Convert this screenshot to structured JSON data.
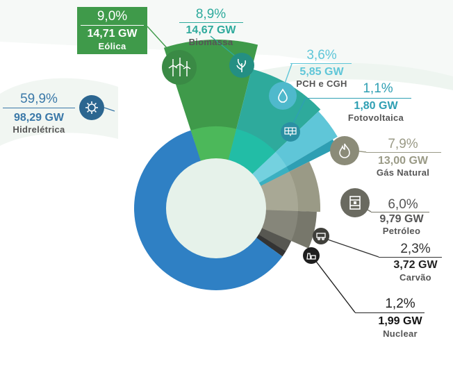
{
  "chart_data": {
    "type": "pie",
    "slices": [
      {
        "name": "Hidrelétrica",
        "percent": "59,9%",
        "capacity": "98,29 GW",
        "gw": 98.29,
        "color": "#3a78a8",
        "inner_color": "#2f80c4",
        "icon": "hydro-icon"
      },
      {
        "name": "Eólica",
        "percent": "9,0%",
        "capacity": "14,71 GW",
        "gw": 14.71,
        "color": "#3f9a4a",
        "inner_color": "#4cb85a",
        "icon": "wind-turbine-icon"
      },
      {
        "name": "Biomassa",
        "percent": "8,9%",
        "capacity": "14,67 GW",
        "gw": 14.67,
        "color": "#2eaa9c",
        "inner_color": "#22bda6",
        "icon": "biomass-icon"
      },
      {
        "name": "PCH e CGH",
        "percent": "3,6%",
        "capacity": "5,85 GW",
        "gw": 5.85,
        "color": "#5fc6d8",
        "inner_color": "#74d1df",
        "icon": "water-drop-icon"
      },
      {
        "name": "Fotovoltaica",
        "percent": "1,1%",
        "capacity": "1,80 GW",
        "gw": 1.8,
        "color": "#2e9fb3",
        "inner_color": "#3bb0c1",
        "icon": "solar-panel-icon"
      },
      {
        "name": "Gás Natural",
        "percent": "7,9%",
        "capacity": "13,00 GW",
        "gw": 13.0,
        "color": "#9a9a86",
        "inner_color": "#a8a895",
        "icon": "flame-icon"
      },
      {
        "name": "Petróleo",
        "percent": "6,0%",
        "capacity": "9,79 GW",
        "gw": 9.79,
        "color": "#77776b",
        "inner_color": "#86867a",
        "icon": "oil-barrel-icon"
      },
      {
        "name": "Carvão",
        "percent": "2,3%",
        "capacity": "3,72 GW",
        "gw": 3.72,
        "color": "#4a4a44",
        "inner_color": "#575751",
        "icon": "coal-cart-icon"
      },
      {
        "name": "Nuclear",
        "percent": "1,2%",
        "capacity": "1,99 GW",
        "gw": 1.99,
        "color": "#262626",
        "inner_color": "#333333",
        "icon": "nuclear-plant-icon"
      }
    ],
    "center_color": "#e6f2ea"
  }
}
